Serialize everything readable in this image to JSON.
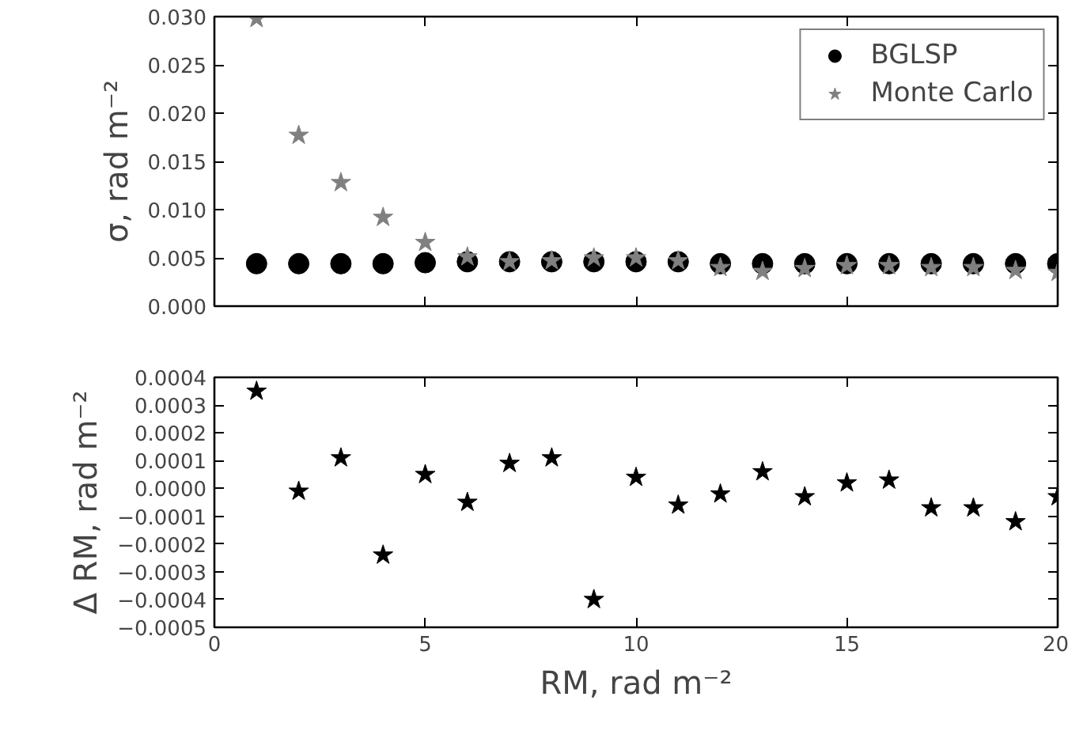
{
  "chart_data": [
    {
      "type": "scatter",
      "ylabel": "σ, rad m⁻²",
      "x": [
        1,
        2,
        3,
        4,
        5,
        6,
        7,
        8,
        9,
        10,
        11,
        12,
        13,
        14,
        15,
        16,
        17,
        18,
        19,
        20
      ],
      "xlim": [
        0,
        20
      ],
      "xticks": [
        0,
        5,
        10,
        15,
        20
      ],
      "ylim": [
        0,
        0.03
      ],
      "yticks": [
        {
          "value": 0.0,
          "label": "0.000"
        },
        {
          "value": 0.005,
          "label": "0.005"
        },
        {
          "value": 0.01,
          "label": "0.010"
        },
        {
          "value": 0.015,
          "label": "0.015"
        },
        {
          "value": 0.02,
          "label": "0.020"
        },
        {
          "value": 0.025,
          "label": "0.025"
        },
        {
          "value": 0.03,
          "label": "0.030"
        }
      ],
      "tick_labels": "y",
      "grid": false,
      "legend": "top right",
      "series": [
        {
          "name": "BGLSP",
          "color": "#000000",
          "marker": "circle",
          "values": [
            0.0044,
            0.0044,
            0.0044,
            0.0044,
            0.0045,
            0.0046,
            0.0046,
            0.0046,
            0.0046,
            0.0046,
            0.0046,
            0.0044,
            0.0044,
            0.0044,
            0.0044,
            0.0044,
            0.0044,
            0.0044,
            0.0044,
            0.0044
          ]
        },
        {
          "name": "Monte Carlo",
          "color": "#808080",
          "marker": "star",
          "values": [
            0.0298,
            0.0177,
            0.0128,
            0.0092,
            0.0066,
            0.0051,
            0.0046,
            0.0047,
            0.005,
            0.005,
            0.0047,
            0.004,
            0.0036,
            0.0039,
            0.0042,
            0.0042,
            0.004,
            0.004,
            0.0037,
            0.0035
          ]
        }
      ]
    },
    {
      "type": "scatter",
      "xlabel": "RM, rad m⁻²",
      "ylabel": "Δ RM, rad m⁻²",
      "x": [
        1,
        2,
        3,
        4,
        5,
        6,
        7,
        8,
        9,
        10,
        11,
        12,
        13,
        14,
        15,
        16,
        17,
        18,
        19,
        20
      ],
      "xlim": [
        0,
        20
      ],
      "xticks": [
        0,
        5,
        10,
        15,
        20
      ],
      "ylim": [
        -0.0005,
        0.0004
      ],
      "yticks": [
        {
          "value": -0.0005,
          "label": "−0.0005"
        },
        {
          "value": -0.0004,
          "label": "−0.0004"
        },
        {
          "value": -0.0003,
          "label": "−0.0003"
        },
        {
          "value": -0.0002,
          "label": "−0.0002"
        },
        {
          "value": -0.0001,
          "label": "−0.0001"
        },
        {
          "value": 0.0,
          "label": "0.0000"
        },
        {
          "value": 0.0001,
          "label": "0.0001"
        },
        {
          "value": 0.0002,
          "label": "0.0002"
        },
        {
          "value": 0.0003,
          "label": "0.0003"
        },
        {
          "value": 0.0004,
          "label": "0.0004"
        }
      ],
      "grid": false,
      "legend": false,
      "series": [
        {
          "color": "#000000",
          "marker": "star",
          "values": [
            0.00035,
            -1e-05,
            0.00011,
            -0.00024,
            5e-05,
            -5e-05,
            9e-05,
            0.00011,
            -0.0004,
            4e-05,
            -6e-05,
            -2e-05,
            6e-05,
            -3e-05,
            2e-05,
            3e-05,
            -7e-05,
            -7e-05,
            -0.00012,
            -3e-05
          ]
        }
      ]
    }
  ]
}
